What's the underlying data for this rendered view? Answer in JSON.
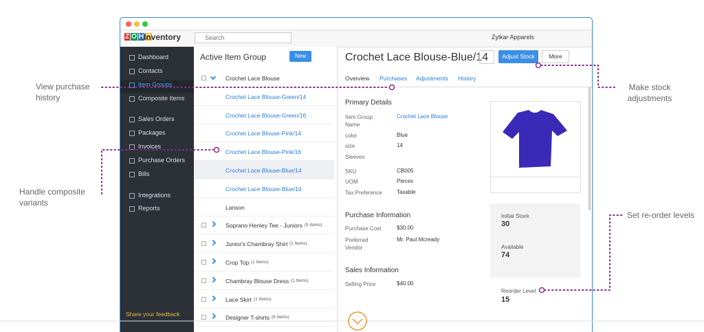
{
  "annotations": {
    "purchase_history": "View purchase history",
    "composite_variants": "Handle composite variants",
    "stock_adjustments": "Make stock adjustments",
    "reorder_levels": "Set re-order levels"
  },
  "header": {
    "logo": "ZOHO",
    "app": "Inventory",
    "search": "Search",
    "org": "Zylkar Apparels"
  },
  "sidebar": {
    "items": [
      "Dashboard",
      "Contacts",
      "Item Groups",
      "Composite Items",
      "Sales Orders",
      "Packages",
      "Invoices",
      "Purchase Orders",
      "Bills",
      "Integrations",
      "Reports"
    ],
    "feedback": "Share your feedback"
  },
  "list": {
    "filter": "Active Item Group",
    "new": "New",
    "items": [
      {
        "name": "Crochet Lace Blouse"
      },
      {
        "name": "Crochet Lace Blouse-Green/14"
      },
      {
        "name": "Crochet Lace Blouse-Green/16"
      },
      {
        "name": "Crochet Lace Blouse-Pink/14"
      },
      {
        "name": "Crochet Lace Blouse-Pink/16"
      },
      {
        "name": "Crochet Lace Blouse-Blue/14"
      },
      {
        "name": "Crochet Lace Blouse-Blue/16"
      },
      {
        "name": "Lanson"
      },
      {
        "name": "Soprano Henley Tee - Juniors",
        "count": "(5 Items)"
      },
      {
        "name": "Junior's Chambray Shirt",
        "count": "(1 Items)"
      },
      {
        "name": "Crop Top",
        "count": "(1 Items)"
      },
      {
        "name": "Chambray Blouse Dress",
        "count": "(1 Items)"
      },
      {
        "name": "Lace Skirt",
        "count": "(1 Items)"
      },
      {
        "name": "Designer T-shirts",
        "count": "(6 Items)"
      }
    ]
  },
  "detail": {
    "title": "Crochet Lace Blouse-Blue/14",
    "adjust": "Adjust Stock",
    "more": "More",
    "tabs": [
      "Overview",
      "Purchases",
      "Adjustments",
      "History"
    ],
    "sections": [
      {
        "title": "Primary Details",
        "fields": [
          {
            "label": "Item Group Name",
            "value": "Crochet Lace Blouse"
          },
          {
            "label": "color",
            "value": "Blue"
          },
          {
            "label": "size",
            "value": "14"
          },
          {
            "label": "Sleeves"
          },
          {
            "label": "SKU",
            "value": "CB005"
          },
          {
            "label": "UOM",
            "value": "Pieces"
          },
          {
            "label": "Tax Preference",
            "value": "Taxable"
          }
        ]
      },
      {
        "title": "Purchase Information",
        "fields": [
          {
            "label": "Purchase Cost",
            "value": "$30.00"
          },
          {
            "label": "Preferred Vendor",
            "value": "Mr. Paul Mcready"
          }
        ]
      },
      {
        "title": "Sales Information",
        "fields": [
          {
            "label": "Selling Price",
            "value": "$40.00"
          }
        ]
      }
    ],
    "stock": {
      "initial_label": "Initial Stock",
      "initial": "30",
      "available_label": "Available",
      "available": "74",
      "reorder_label": "Reorder Level",
      "reorder": "15"
    }
  }
}
